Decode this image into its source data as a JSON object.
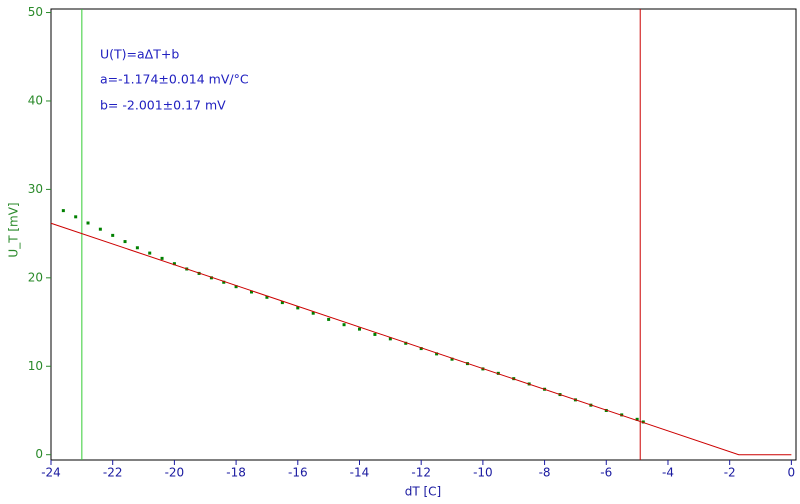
{
  "chart_data": {
    "type": "scatter",
    "x_label": "dT [C]",
    "y_label": "U_T [mV]",
    "annotations": [
      "U(T)=aΔT+b",
      "a=-1.174±0.014 mV/°C",
      "b= -2.001±0.17 mV"
    ],
    "xlim": [
      -24,
      0.15
    ],
    "ylim": [
      -0.6,
      50.4
    ],
    "xticks": [
      -24,
      -22,
      -20,
      -18,
      -16,
      -14,
      -12,
      -10,
      -8,
      -6,
      -4,
      -2,
      0
    ],
    "yticks": [
      0,
      10,
      20,
      30,
      40,
      50
    ],
    "series": [
      {
        "type": "scatter",
        "color": "#008000",
        "x": [
          -23.6,
          -23.2,
          -22.8,
          -22.4,
          -22.0,
          -21.6,
          -21.2,
          -20.8,
          -20.4,
          -20.0,
          -19.6,
          -19.2,
          -18.8,
          -18.4,
          -18.0,
          -17.5,
          -17.0,
          -16.5,
          -16.0,
          -15.5,
          -15.0,
          -14.5,
          -14.0,
          -13.5,
          -13.0,
          -12.5,
          -12.0,
          -11.5,
          -11.0,
          -10.5,
          -10.0,
          -9.5,
          -9.0,
          -8.5,
          -8.0,
          -7.5,
          -7.0,
          -6.5,
          -6.0,
          -5.5,
          -5.0,
          -4.8
        ],
        "values": [
          27.6,
          26.9,
          26.2,
          25.5,
          24.8,
          24.1,
          23.4,
          22.8,
          22.2,
          21.6,
          21.0,
          20.5,
          20.0,
          19.5,
          19.0,
          18.4,
          17.8,
          17.2,
          16.6,
          16.0,
          15.3,
          14.7,
          14.2,
          13.6,
          13.1,
          12.6,
          12.0,
          11.4,
          10.8,
          10.3,
          9.7,
          9.2,
          8.6,
          8.0,
          7.4,
          6.8,
          6.2,
          5.6,
          5.0,
          4.5,
          4.0,
          3.7
        ]
      },
      {
        "type": "line",
        "color": "#cc0000",
        "x": [
          -24,
          -1.704,
          0
        ],
        "values": [
          26.175,
          0,
          0
        ]
      }
    ],
    "cursors": [
      {
        "x": -23,
        "color": "#33cc33"
      },
      {
        "x": -4.9,
        "color": "#cc0000"
      }
    ]
  }
}
